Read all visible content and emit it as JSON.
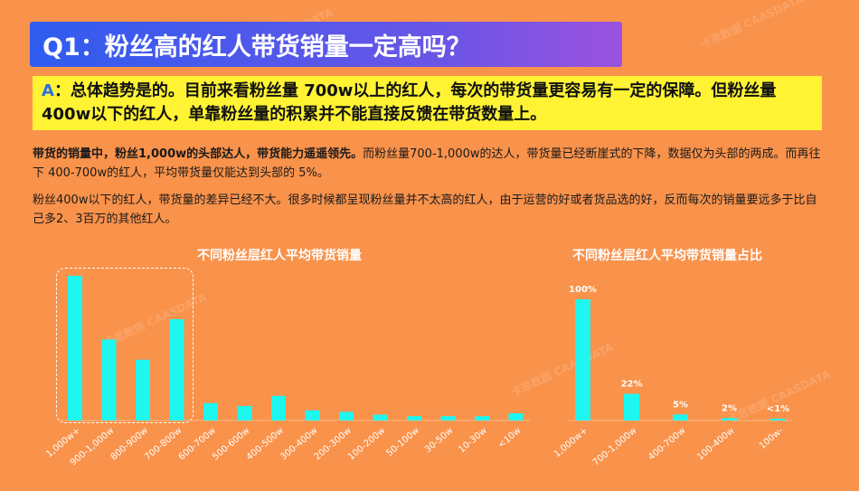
{
  "title": "Q1：粉丝高的红人带货销量一定高吗？",
  "answer": {
    "label": "A",
    "text": "：总体趋势是的。目前来看粉丝量 700w以上的红人，每次的带货量更容易有一定的保障。但粉丝量 400w以下的红人，单靠粉丝量的积累并不能直接反馈在带货数量上。"
  },
  "paragraph1": {
    "bold": "带货的销量中，粉丝1,000w的头部达人，带货能力遥遥领先。",
    "normal": "而粉丝量700-1,000w的达人，带货量已经断崖式的下降，数据仅为头部的两成。而再往下 400-700w的红人，平均带货量仅能达到头部的 5%。"
  },
  "paragraph2": "粉丝400w以下的红人，带货量的差异已经不大。很多时候都呈现粉丝量并不太高的红人，由于运营的好或者货品选的好，反而每次的销量要远多于比自己多2、3百万的其他红人。",
  "watermark": "卡思数据 CAASDATA",
  "colors": {
    "bar": "#1EF6F0",
    "background": "#F9924B",
    "title_bg": "#2F5CF0",
    "answer_bg": "#FFF334"
  },
  "chart_data": [
    {
      "type": "bar",
      "title": "不同粉丝层红人平均带货销量",
      "categories": [
        "1,000w+",
        "900-1,000w",
        "800-900w",
        "700-800w",
        "600-700w",
        "500-600w",
        "400-500w",
        "300-400w",
        "200-300w",
        "100-200w",
        "50-100w",
        "30-50w",
        "10-30w",
        "<10w"
      ],
      "values": [
        100,
        56,
        42,
        70,
        12,
        10,
        17,
        7,
        6,
        4,
        3,
        3,
        3,
        5
      ],
      "ylim": [
        0,
        100
      ],
      "highlight_categories": [
        "1,000w+",
        "900-1,000w",
        "800-900w",
        "700-800w"
      ]
    },
    {
      "type": "bar",
      "title": "不同粉丝层红人平均带货销量占比",
      "categories": [
        "1,000w+",
        "700-1,000w",
        "400-700w",
        "100-400w",
        "100w-"
      ],
      "values": [
        100,
        22,
        5,
        2,
        1
      ],
      "data_labels": [
        "100%",
        "22%",
        "5%",
        "2%",
        "<1%"
      ],
      "ylim": [
        0,
        100
      ]
    }
  ]
}
